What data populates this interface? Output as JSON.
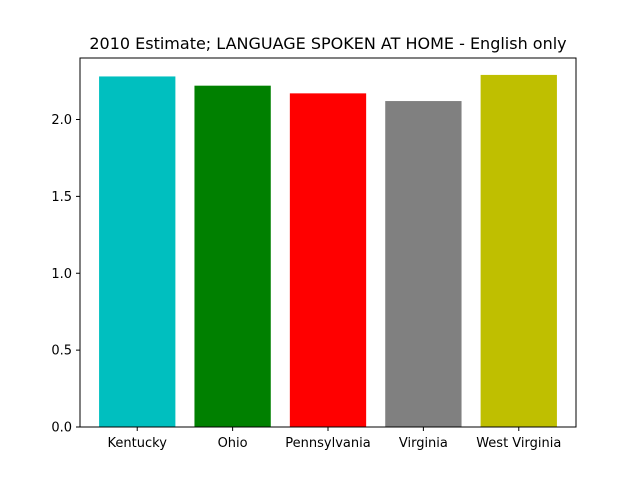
{
  "chart_data": {
    "type": "bar",
    "title": "2010 Estimate; LANGUAGE SPOKEN AT HOME - English only",
    "xlabel": "",
    "ylabel": "",
    "categories": [
      "Kentucky",
      "Ohio",
      "Pennsylvania",
      "Virginia",
      "West Virginia"
    ],
    "values": [
      2.28,
      2.22,
      2.17,
      2.12,
      2.29
    ],
    "colors": [
      "#00bfbf",
      "#008000",
      "#ff0000",
      "#808080",
      "#bfbf00"
    ],
    "ylim": [
      0,
      2.4
    ],
    "yticks": [
      "0.0",
      "0.5",
      "1.0",
      "1.5",
      "2.0"
    ],
    "grid": false,
    "legend": "none"
  }
}
